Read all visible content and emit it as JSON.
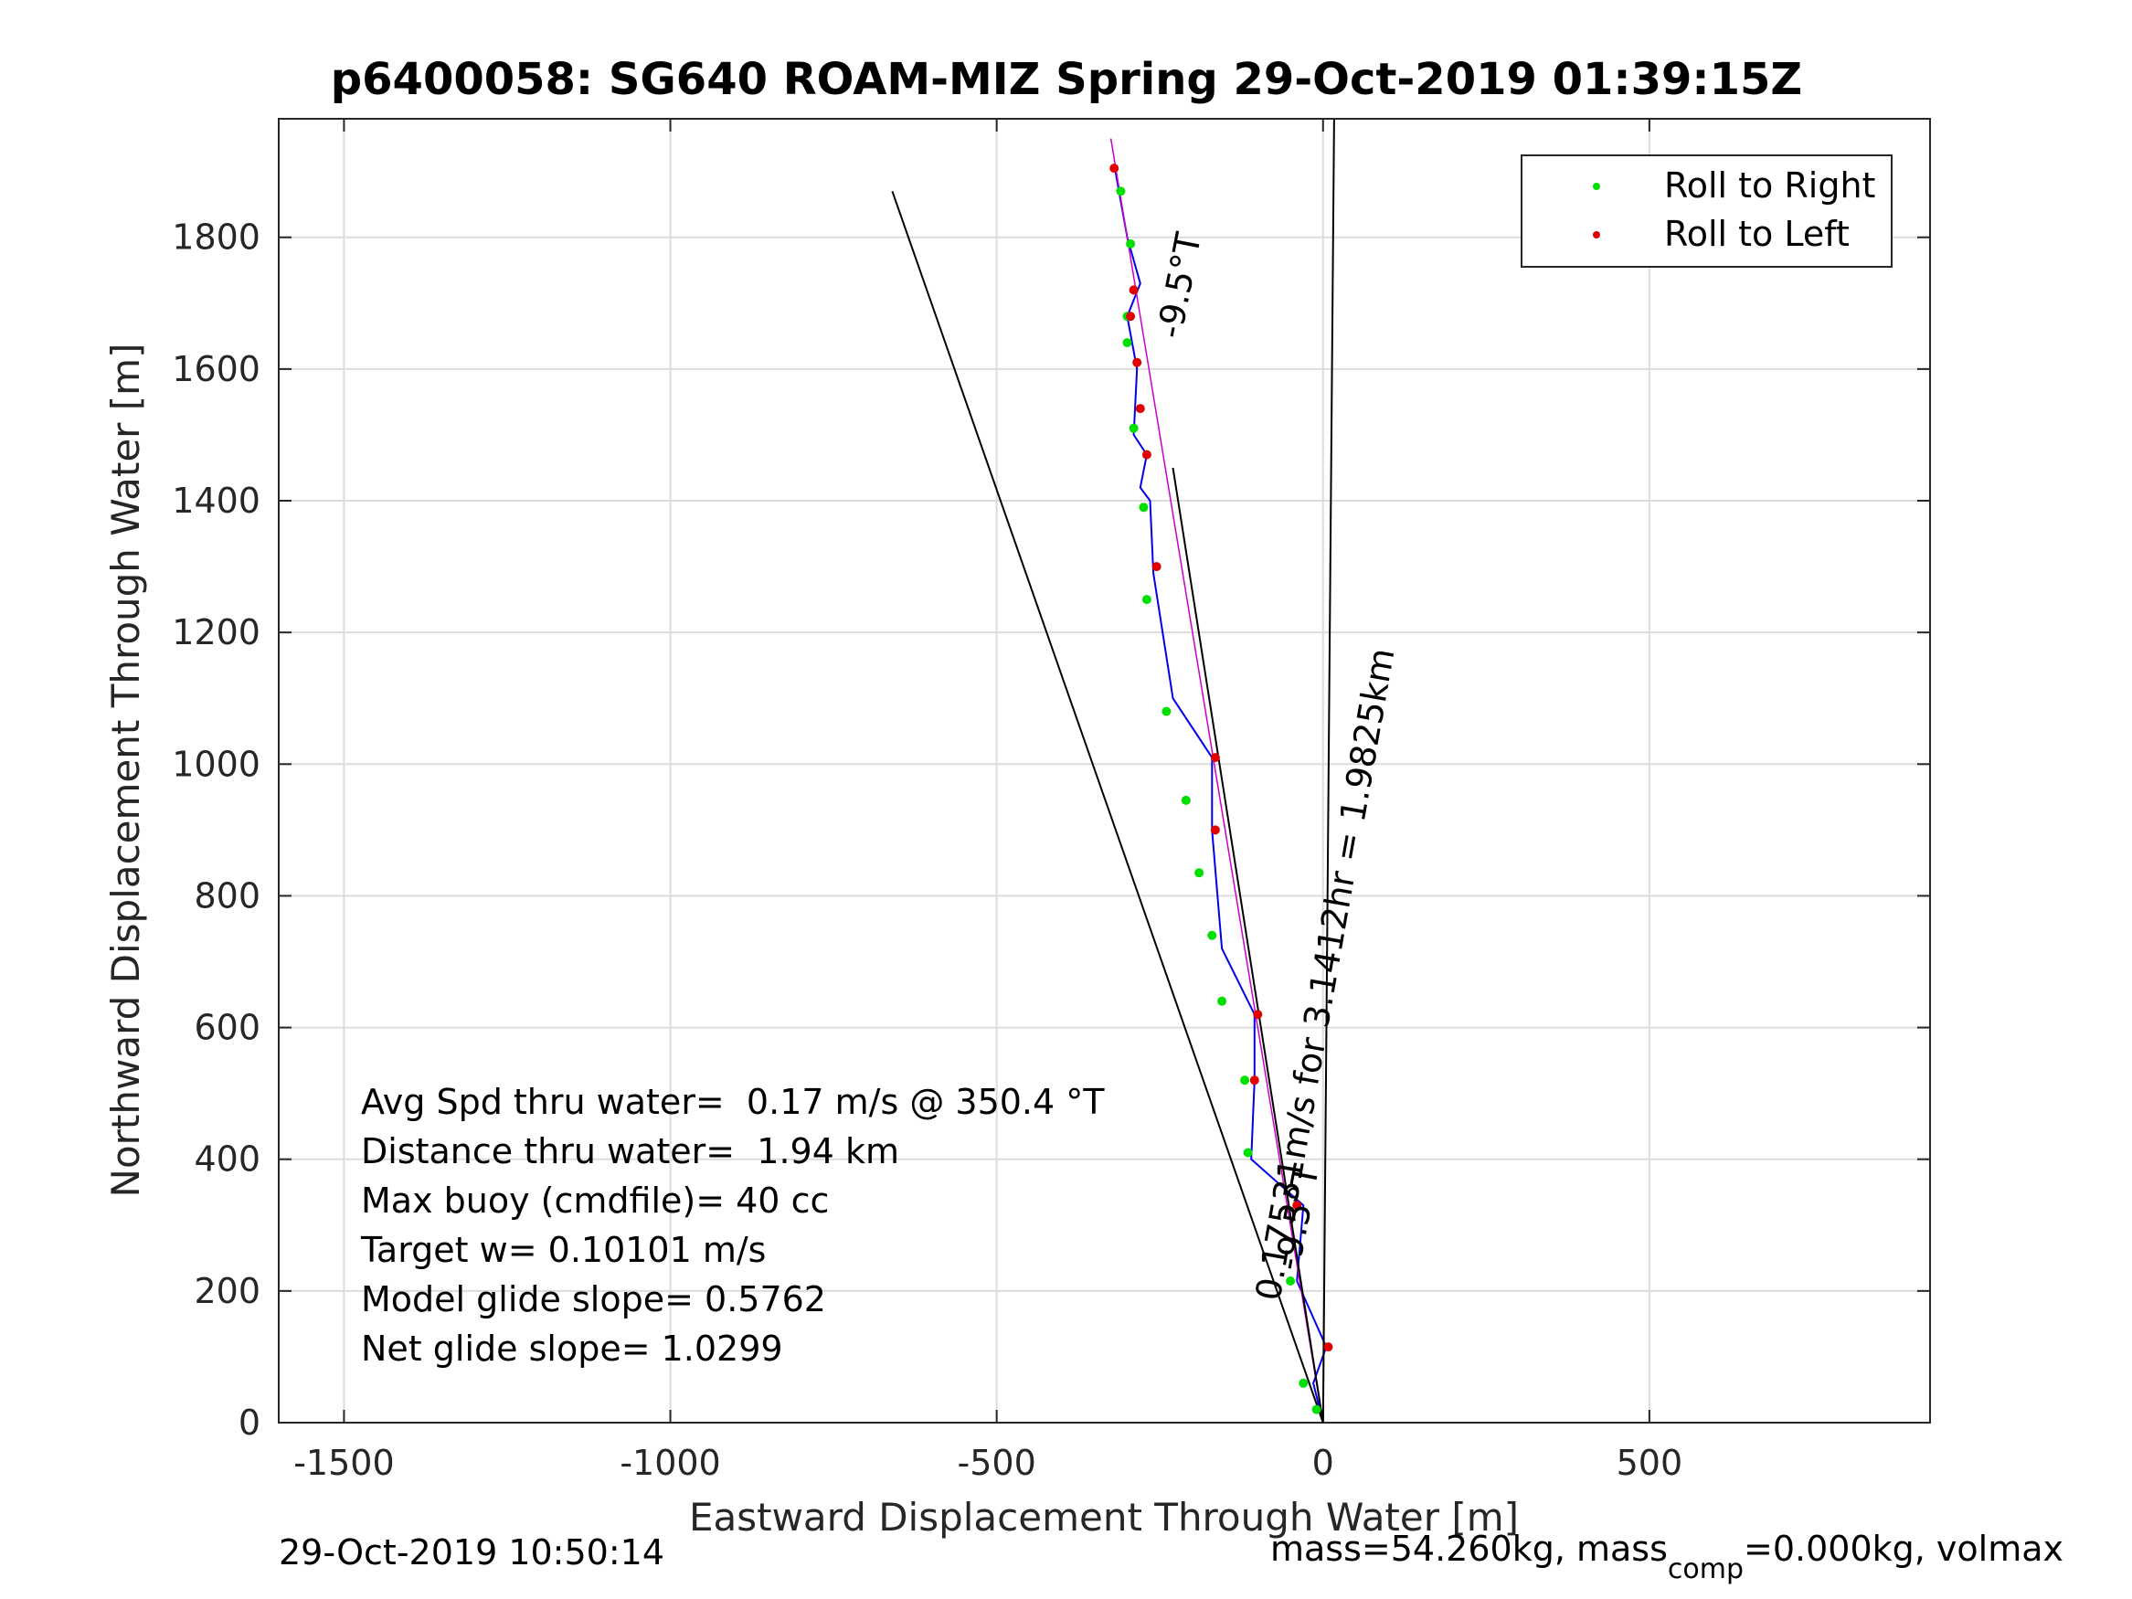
{
  "chart_data": {
    "type": "scatter",
    "title": "p6400058: SG640 ROAM-MIZ Spring 29-Oct-2019 01:39:15Z",
    "xlabel": "Eastward Displacement Through Water [m]",
    "ylabel": "Northward Displacement Through Water [m]",
    "xlim": [
      -1600,
      930
    ],
    "ylim": [
      0,
      1980
    ],
    "xticks": [
      -1500,
      -1000,
      -500,
      0,
      500
    ],
    "yticks": [
      0,
      200,
      400,
      600,
      800,
      1000,
      1200,
      1400,
      1600,
      1800
    ],
    "grid": true,
    "legend_position": "top-right",
    "legend": [
      {
        "label": "Roll to Right",
        "color": "#00e000"
      },
      {
        "label": "Roll to Left",
        "color": "#e00000"
      }
    ],
    "series": [
      {
        "name": "Roll to Right",
        "color": "#00e000",
        "points": [
          [
            -10,
            20
          ],
          [
            -30,
            60
          ],
          [
            -50,
            215
          ],
          [
            -115,
            410
          ],
          [
            -120,
            520
          ],
          [
            -155,
            640
          ],
          [
            -170,
            740
          ],
          [
            -190,
            835
          ],
          [
            -210,
            945
          ],
          [
            -240,
            1080
          ],
          [
            -270,
            1250
          ],
          [
            -275,
            1390
          ],
          [
            -290,
            1510
          ],
          [
            -300,
            1640
          ],
          [
            -300,
            1680
          ],
          [
            -295,
            1790
          ],
          [
            -310,
            1870
          ]
        ]
      },
      {
        "name": "Roll to Left",
        "color": "#e00000",
        "points": [
          [
            8,
            115
          ],
          [
            -40,
            330
          ],
          [
            -105,
            520
          ],
          [
            -100,
            620
          ],
          [
            -165,
            900
          ],
          [
            -165,
            1010
          ],
          [
            -255,
            1300
          ],
          [
            -270,
            1470
          ],
          [
            -280,
            1540
          ],
          [
            -285,
            1610
          ],
          [
            -295,
            1680
          ],
          [
            -290,
            1720
          ],
          [
            -320,
            1905
          ]
        ]
      }
    ],
    "lines": [
      {
        "name": "track",
        "color": "#0000ee",
        "points": [
          [
            0,
            0
          ],
          [
            -15,
            60
          ],
          [
            5,
            115
          ],
          [
            -40,
            215
          ],
          [
            -30,
            330
          ],
          [
            -110,
            400
          ],
          [
            -105,
            520
          ],
          [
            -105,
            620
          ],
          [
            -155,
            720
          ],
          [
            -170,
            900
          ],
          [
            -170,
            1010
          ],
          [
            -230,
            1100
          ],
          [
            -260,
            1290
          ],
          [
            -265,
            1400
          ],
          [
            -280,
            1420
          ],
          [
            -270,
            1470
          ],
          [
            -290,
            1500
          ],
          [
            -285,
            1600
          ],
          [
            -300,
            1680
          ],
          [
            -280,
            1730
          ],
          [
            -300,
            1800
          ],
          [
            -318,
            1900
          ]
        ]
      },
      {
        "name": "heading-line",
        "color": "#cc00cc",
        "points": [
          [
            0,
            0
          ],
          [
            -325,
            1950
          ]
        ]
      },
      {
        "name": "reference-1",
        "color": "#000000",
        "points": [
          [
            0,
            0
          ],
          [
            -660,
            1870
          ]
        ]
      },
      {
        "name": "reference-2",
        "color": "#000000",
        "points": [
          [
            0,
            0
          ],
          [
            17,
            1980
          ]
        ]
      },
      {
        "name": "reference-3",
        "color": "#000000",
        "points": [
          [
            0,
            0
          ],
          [
            -230,
            1450
          ]
        ]
      }
    ],
    "annotations": {
      "heading_upper": "-9.5°T",
      "heading_lower": "-9.5°T",
      "track_label": "0.17531m/s for 3.1412hr = 1.9825km",
      "stats": [
        "Avg Spd thru water=  0.17 m/s @ 350.4 °T",
        "Distance thru water=  1.94 km",
        "Max buoy (cmdfile)= 40 cc",
        "Target w= 0.10101 m/s",
        "Model glide slope= 0.5762",
        "Net glide slope= 1.0299"
      ]
    }
  },
  "footer": {
    "timestamp": "29-Oct-2019 10:50:14",
    "mass_prefix": "mass=54.260kg, mass",
    "mass_sub": "comp",
    "mass_suffix": "=0.000kg, volmax"
  }
}
